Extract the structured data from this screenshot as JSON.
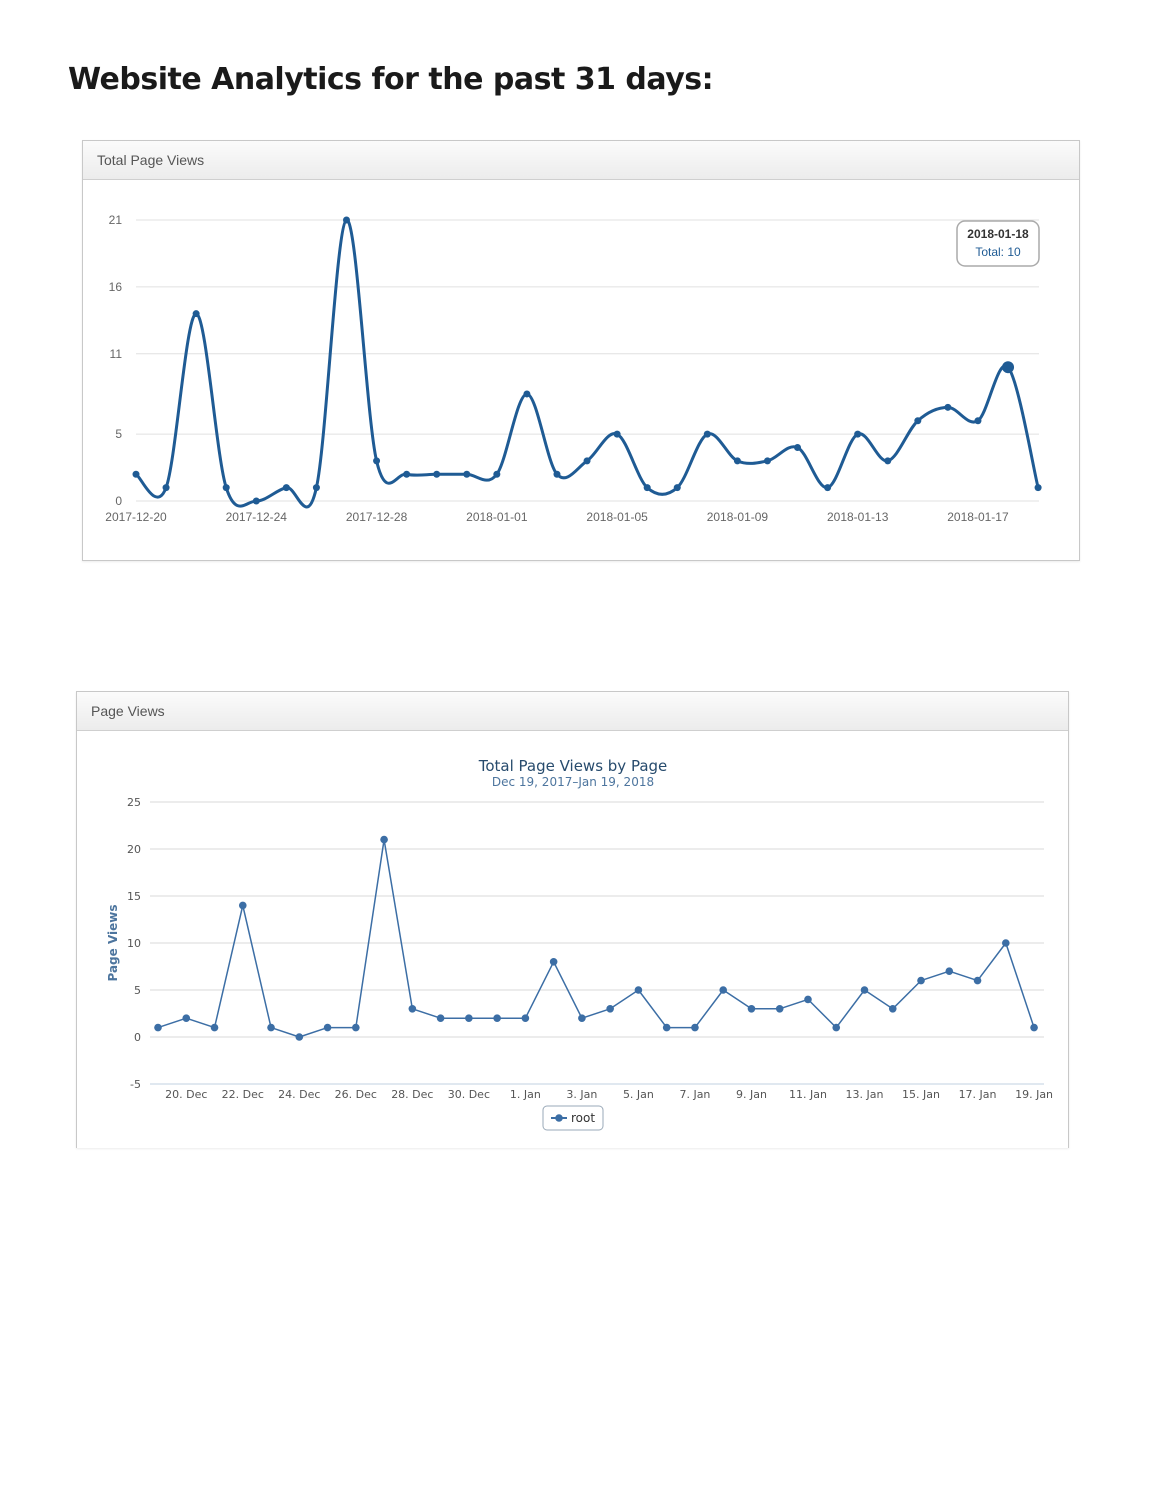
{
  "page": {
    "title": "Website Analytics for the past 31 days:"
  },
  "panel1": {
    "heading": "Total Page Views"
  },
  "panel2": {
    "heading": "Page Views"
  },
  "chart_data": [
    {
      "type": "line",
      "title": "",
      "x": [
        "2017-12-20",
        "2017-12-21",
        "2017-12-22",
        "2017-12-23",
        "2017-12-24",
        "2017-12-25",
        "2017-12-26",
        "2017-12-27",
        "2017-12-28",
        "2017-12-29",
        "2017-12-30",
        "2017-12-31",
        "2018-01-01",
        "2018-01-02",
        "2018-01-03",
        "2018-01-04",
        "2018-01-05",
        "2018-01-06",
        "2018-01-07",
        "2018-01-08",
        "2018-01-09",
        "2018-01-10",
        "2018-01-11",
        "2018-01-12",
        "2018-01-13",
        "2018-01-14",
        "2018-01-15",
        "2018-01-16",
        "2018-01-17",
        "2018-01-18",
        "2018-01-19"
      ],
      "series": [
        {
          "values": [
            2,
            1,
            14,
            1,
            0,
            1,
            1,
            21,
            3,
            2,
            2,
            2,
            2,
            8,
            2,
            3,
            5,
            1,
            1,
            5,
            3,
            3,
            4,
            1,
            5,
            3,
            6,
            7,
            6,
            10,
            1
          ]
        }
      ],
      "x_tick_labels": [
        "2017-12-20",
        "2017-12-24",
        "2017-12-28",
        "2018-01-01",
        "2018-01-05",
        "2018-01-09",
        "2018-01-13",
        "2018-01-17"
      ],
      "y_ticks": [
        0,
        5,
        11,
        16,
        21
      ],
      "ylim": [
        0,
        21
      ],
      "smooth": true,
      "grid": true,
      "color": "#1f5b94",
      "highlight_index": 29,
      "tooltip": {
        "date": "2018-01-18",
        "text": "Total: 10"
      }
    },
    {
      "type": "line",
      "title": "Total Page Views by Page",
      "subtitle": "Dec 19, 2017–Jan 19, 2018",
      "ylabel": "Page Views",
      "xlabel": "",
      "x": [
        "2017-12-19",
        "2017-12-20",
        "2017-12-21",
        "2017-12-22",
        "2017-12-23",
        "2017-12-24",
        "2017-12-25",
        "2017-12-26",
        "2017-12-27",
        "2017-12-28",
        "2017-12-29",
        "2017-12-30",
        "2017-12-31",
        "2018-01-01",
        "2018-01-02",
        "2018-01-03",
        "2018-01-04",
        "2018-01-05",
        "2018-01-06",
        "2018-01-07",
        "2018-01-08",
        "2018-01-09",
        "2018-01-10",
        "2018-01-11",
        "2018-01-12",
        "2018-01-13",
        "2018-01-14",
        "2018-01-15",
        "2018-01-16",
        "2018-01-17",
        "2018-01-18",
        "2018-01-19"
      ],
      "series": [
        {
          "name": "root",
          "values": [
            1,
            2,
            1,
            14,
            1,
            0,
            1,
            1,
            21,
            3,
            2,
            2,
            2,
            2,
            8,
            2,
            3,
            5,
            1,
            1,
            5,
            3,
            3,
            4,
            1,
            5,
            3,
            6,
            7,
            6,
            10,
            1
          ]
        }
      ],
      "x_tick_labels": [
        "20. Dec",
        "22. Dec",
        "24. Dec",
        "26. Dec",
        "28. Dec",
        "30. Dec",
        "1. Jan",
        "3. Jan",
        "5. Jan",
        "7. Jan",
        "9. Jan",
        "11. Jan",
        "13. Jan",
        "15. Jan",
        "17. Jan",
        "19. Jan"
      ],
      "y_ticks": [
        -5,
        0,
        5,
        10,
        15,
        20,
        25
      ],
      "ylim": [
        -5,
        25
      ],
      "grid": true,
      "legend": "bottom-center",
      "color": "#3c6ea5"
    }
  ]
}
